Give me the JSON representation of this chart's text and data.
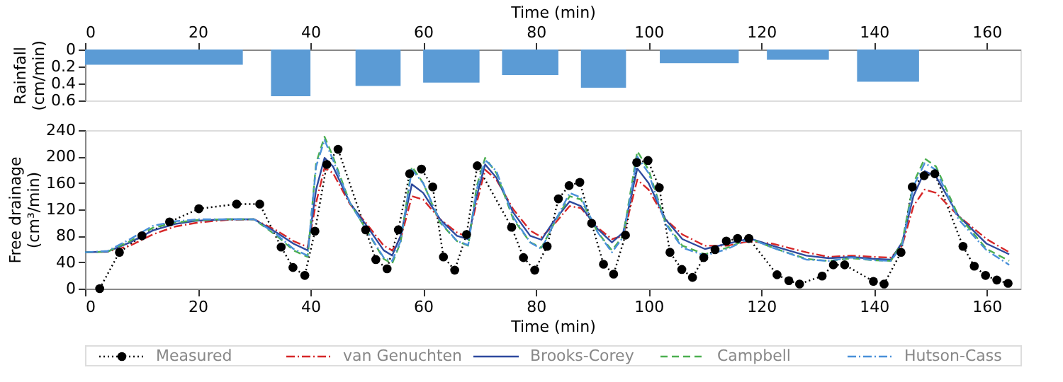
{
  "chart_data": [
    {
      "type": "histogram",
      "xlabel": "Time (min)",
      "ylabel": "Rainfall (cm/min)",
      "xlim": [
        0,
        166
      ],
      "xticks": [
        0,
        20,
        40,
        60,
        80,
        100,
        120,
        140,
        160
      ],
      "ylim": [
        0.6,
        0
      ],
      "yticks": [
        0,
        0.2,
        0.4,
        0.6
      ],
      "color": "#5b9bd5",
      "bins": [
        0,
        28,
        33,
        40,
        48,
        56,
        60,
        70,
        74,
        84,
        88,
        96,
        102,
        116,
        121,
        132,
        137,
        148
      ],
      "values": [
        0.18,
        0,
        0.55,
        0,
        0.43,
        0,
        0.39,
        0,
        0.3,
        0,
        0.45,
        0,
        0.16,
        0,
        0.12,
        0,
        0.38
      ],
      "grid": false
    },
    {
      "type": "line",
      "xlabel": "Time (min)",
      "ylabel": "Free drainage (cm³/min)",
      "xlim": [
        0,
        166
      ],
      "xticks": [
        0,
        20,
        40,
        60,
        80,
        100,
        120,
        140,
        160
      ],
      "ylim": [
        0,
        240
      ],
      "yticks": [
        0,
        40,
        80,
        120,
        160,
        200,
        240
      ],
      "legend": "bottom",
      "grid": false,
      "series": [
        {
          "name": "Measured",
          "color": "#000000",
          "marker": "circle",
          "line_style": "dotted",
          "x": [
            2.6,
            6.1,
            10.1,
            15,
            20.2,
            26.9,
            31,
            34.8,
            36.9,
            39,
            40.8,
            42.9,
            44.9,
            49.8,
            51.6,
            53.6,
            55.6,
            57.6,
            59.7,
            61.7,
            63.6,
            65.6,
            67.7,
            69.6,
            75.7,
            77.8,
            79.8,
            82,
            84,
            85.9,
            87.8,
            89.9,
            92,
            93.8,
            95.9,
            97.9,
            99.9,
            101.9,
            103.8,
            105.9,
            107.8,
            109.8,
            111.8,
            113.8,
            115.8,
            117.8,
            122.8,
            124.9,
            126.8,
            130.8,
            132.8,
            134.8,
            139.9,
            141.8,
            144.8,
            146.8,
            148.9,
            150.8,
            155.8,
            157.8,
            159.8,
            161.8,
            163.8
          ],
          "values": [
            0,
            55,
            80,
            101,
            121,
            128,
            128,
            63,
            32,
            20,
            87,
            188,
            211,
            89,
            44,
            30,
            89,
            174,
            181,
            154,
            48,
            28,
            82,
            186,
            93,
            47,
            28,
            64,
            136,
            156,
            161,
            99,
            37,
            22,
            81,
            191,
            194,
            153,
            55,
            29,
            17,
            47,
            59,
            72,
            76,
            76,
            21,
            12,
            7,
            19,
            36,
            36,
            11,
            7,
            55,
            154,
            171,
            174,
            64,
            34,
            20,
            13,
            8
          ]
        },
        {
          "name": "van Genuchten",
          "color": "#d62728",
          "marker": "none",
          "line_style": "dashdot",
          "x": [
            0,
            4,
            8,
            12,
            16,
            20,
            25,
            30,
            34,
            37,
            39.5,
            41,
            42.5,
            44,
            47,
            50,
            53,
            54.5,
            56,
            58,
            60,
            63,
            66,
            68,
            69.5,
            71,
            73,
            76,
            79,
            81,
            83,
            86,
            88,
            91,
            93.5,
            95.5,
            98,
            100,
            103,
            106,
            110,
            114,
            118,
            122,
            128,
            132,
            136,
            140,
            143,
            145,
            147,
            149,
            151,
            155,
            160,
            164
          ],
          "values": [
            55,
            56,
            65,
            82,
            94,
            100,
            104,
            105,
            88,
            72,
            63,
            130,
            183,
            175,
            128,
            98,
            65,
            58,
            75,
            140,
            135,
            105,
            85,
            78,
            130,
            180,
            165,
            120,
            88,
            78,
            95,
            125,
            122,
            92,
            75,
            80,
            165,
            150,
            105,
            82,
            65,
            65,
            72,
            68,
            55,
            48,
            50,
            48,
            47,
            65,
            125,
            150,
            145,
            110,
            75,
            55
          ]
        },
        {
          "name": "Brooks-Corey",
          "color": "#2e4a9e",
          "marker": "none",
          "line_style": "solid",
          "x": [
            0,
            4,
            8,
            12,
            16,
            20,
            25,
            30,
            34,
            37,
            39.5,
            41,
            42.5,
            44,
            47,
            50,
            53,
            54.5,
            56,
            58,
            60,
            63,
            66,
            68,
            69.5,
            71,
            73,
            76,
            79,
            81,
            83,
            86,
            88,
            91,
            93.5,
            95.5,
            98,
            100,
            103,
            106,
            110,
            114,
            118,
            122,
            128,
            132,
            136,
            140,
            143,
            145,
            147,
            149,
            151,
            155,
            160,
            164
          ],
          "values": [
            55,
            56,
            70,
            88,
            98,
            103,
            105,
            105,
            85,
            68,
            58,
            150,
            198,
            185,
            130,
            95,
            58,
            50,
            80,
            158,
            145,
            105,
            80,
            75,
            140,
            188,
            168,
            115,
            80,
            74,
            100,
            132,
            125,
            90,
            70,
            85,
            182,
            160,
            105,
            75,
            60,
            68,
            76,
            65,
            50,
            46,
            48,
            45,
            44,
            70,
            140,
            178,
            170,
            110,
            68,
            52
          ]
        },
        {
          "name": "Campbell",
          "color": "#4caf50",
          "marker": "none",
          "line_style": "dashed",
          "x": [
            0,
            4,
            8,
            12,
            16,
            20,
            25,
            30,
            34,
            37,
            39.5,
            41,
            42.5,
            44,
            47,
            50,
            53,
            54.5,
            56,
            58,
            60,
            63,
            66,
            68,
            69.5,
            71,
            73,
            76,
            79,
            81,
            83,
            86,
            88,
            91,
            93.5,
            95.5,
            98,
            100,
            103,
            106,
            110,
            114,
            118,
            122,
            128,
            132,
            136,
            140,
            143,
            145,
            147,
            149,
            151,
            155,
            160,
            164
          ],
          "values": [
            55,
            56,
            72,
            92,
            100,
            104,
            105,
            105,
            80,
            58,
            48,
            190,
            230,
            200,
            130,
            88,
            45,
            38,
            70,
            185,
            160,
            100,
            72,
            65,
            155,
            198,
            175,
            105,
            70,
            62,
            95,
            140,
            135,
            85,
            58,
            80,
            208,
            180,
            100,
            65,
            52,
            62,
            76,
            62,
            45,
            42,
            46,
            43,
            42,
            70,
            160,
            197,
            185,
            110,
            60,
            42
          ]
        },
        {
          "name": "Hutson-Cass",
          "color": "#4a90d9",
          "marker": "none",
          "line_style": "dashdot",
          "x": [
            0,
            4,
            8,
            12,
            16,
            20,
            25,
            30,
            34,
            37,
            39.5,
            41,
            42.5,
            44,
            47,
            50,
            53,
            54.5,
            56,
            58,
            60,
            63,
            66,
            68,
            69.5,
            71,
            73,
            76,
            79,
            81,
            83,
            86,
            88,
            91,
            93.5,
            95.5,
            98,
            100,
            103,
            106,
            110,
            114,
            118,
            122,
            128,
            132,
            136,
            140,
            143,
            145,
            147,
            149,
            151,
            155,
            160,
            164
          ],
          "values": [
            55,
            57,
            75,
            95,
            102,
            105,
            105,
            105,
            82,
            60,
            50,
            185,
            225,
            195,
            130,
            88,
            47,
            42,
            72,
            180,
            160,
            102,
            72,
            66,
            150,
            195,
            178,
            108,
            70,
            60,
            95,
            145,
            138,
            85,
            55,
            78,
            200,
            175,
            98,
            62,
            50,
            60,
            76,
            62,
            44,
            42,
            47,
            43,
            42,
            65,
            155,
            190,
            180,
            105,
            58,
            36
          ]
        }
      ]
    }
  ]
}
